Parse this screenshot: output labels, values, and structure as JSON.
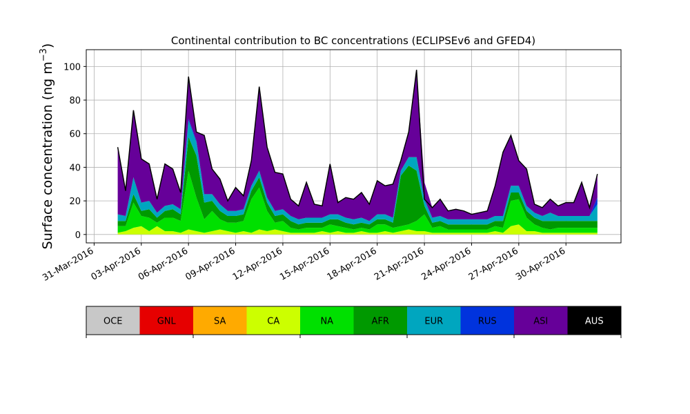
{
  "chart_data": {
    "type": "area",
    "title": "Continental contribution to BC concentrations (ECLIPSEv6 and GFED4)",
    "ylabel": "Surface concentration (ng m",
    "ylabel_sup": "−3",
    "ylabel_close": ")",
    "xlabel": "",
    "stacked": true,
    "grid": true,
    "xlim": [
      "2016-03-30T12:00",
      "2016-05-03T12:00"
    ],
    "ylim": [
      -5,
      110
    ],
    "yticks": [
      0,
      20,
      40,
      60,
      80,
      100
    ],
    "xticks": [
      "2016-03-31",
      "2016-04-03",
      "2016-04-06",
      "2016-04-09",
      "2016-04-12",
      "2016-04-15",
      "2016-04-18",
      "2016-04-21",
      "2016-04-24",
      "2016-04-27",
      "2016-04-30"
    ],
    "xtick_labels": [
      "31-Mar-2016",
      "03-Apr-2016",
      "06-Apr-2016",
      "09-Apr-2016",
      "12-Apr-2016",
      "15-Apr-2016",
      "18-Apr-2016",
      "21-Apr-2016",
      "24-Apr-2016",
      "27-Apr-2016",
      "30-Apr-2016"
    ],
    "x": [
      "2016-04-01T12:00",
      "2016-04-02T00:00",
      "2016-04-02T12:00",
      "2016-04-03T00:00",
      "2016-04-03T12:00",
      "2016-04-04T00:00",
      "2016-04-04T12:00",
      "2016-04-05T00:00",
      "2016-04-05T12:00",
      "2016-04-06T00:00",
      "2016-04-06T12:00",
      "2016-04-07T00:00",
      "2016-04-07T12:00",
      "2016-04-08T00:00",
      "2016-04-08T12:00",
      "2016-04-09T00:00",
      "2016-04-09T12:00",
      "2016-04-10T00:00",
      "2016-04-10T12:00",
      "2016-04-11T00:00",
      "2016-04-11T12:00",
      "2016-04-12T00:00",
      "2016-04-12T12:00",
      "2016-04-13T00:00",
      "2016-04-13T12:00",
      "2016-04-14T00:00",
      "2016-04-14T12:00",
      "2016-04-15T00:00",
      "2016-04-15T12:00",
      "2016-04-16T00:00",
      "2016-04-16T12:00",
      "2016-04-17T00:00",
      "2016-04-17T12:00",
      "2016-04-18T00:00",
      "2016-04-18T12:00",
      "2016-04-19T00:00",
      "2016-04-19T12:00",
      "2016-04-20T00:00",
      "2016-04-20T12:00",
      "2016-04-21T00:00",
      "2016-04-21T12:00",
      "2016-04-22T00:00",
      "2016-04-22T12:00",
      "2016-04-23T00:00",
      "2016-04-23T12:00",
      "2016-04-24T00:00",
      "2016-04-24T12:00",
      "2016-04-25T00:00",
      "2016-04-25T12:00",
      "2016-04-26T00:00",
      "2016-04-26T12:00",
      "2016-04-27T00:00",
      "2016-04-27T12:00",
      "2016-04-28T00:00",
      "2016-04-28T12:00",
      "2016-04-29T00:00",
      "2016-04-29T12:00",
      "2016-04-30T00:00",
      "2016-04-30T12:00",
      "2016-05-01T00:00",
      "2016-05-01T12:00",
      "2016-05-02T00:00"
    ],
    "series": [
      {
        "name": "OCE",
        "color": "#c8c8c8",
        "values": [
          0,
          0,
          0,
          0,
          0,
          0,
          0,
          0,
          0,
          0,
          0,
          0,
          0,
          0,
          0,
          0,
          0,
          0,
          0,
          0,
          0,
          0,
          0,
          0,
          0,
          0,
          0,
          0,
          0,
          0,
          0,
          0,
          0,
          0,
          0,
          0,
          0,
          0,
          0,
          0,
          0,
          0,
          0,
          0,
          0,
          0,
          0,
          0,
          0,
          0,
          0,
          0,
          0,
          0,
          0,
          0,
          0,
          0,
          0,
          0,
          0,
          0
        ]
      },
      {
        "name": "GNL",
        "color": "#e60000",
        "values": [
          0,
          0,
          0,
          0,
          0,
          0,
          0,
          0,
          0,
          0,
          0,
          0,
          0,
          0,
          0,
          0,
          0,
          0,
          0,
          0,
          0,
          0,
          0,
          0,
          0,
          0,
          0,
          0,
          0,
          0,
          0,
          0,
          0,
          0,
          0,
          0,
          0,
          0,
          0,
          0,
          0,
          0,
          0,
          0,
          0,
          0,
          0,
          0,
          0,
          0,
          0,
          0,
          0,
          0,
          0,
          0,
          0,
          0,
          0,
          0,
          0,
          0
        ]
      },
      {
        "name": "SA",
        "color": "#ffaa00",
        "values": [
          0,
          0,
          0,
          0,
          0,
          0,
          0,
          0,
          0,
          0,
          0,
          0,
          0,
          0,
          0,
          0,
          0,
          0,
          0,
          0,
          0,
          0,
          0,
          0,
          0,
          0,
          0,
          0,
          0,
          0,
          0,
          0,
          0,
          0,
          0,
          0,
          0,
          0,
          0,
          0,
          0,
          0,
          0,
          0,
          0,
          0,
          0,
          0,
          0,
          0,
          0,
          0,
          0,
          0,
          0,
          0,
          0,
          0,
          0,
          0,
          0,
          0
        ]
      },
      {
        "name": "CA",
        "color": "#ccff00",
        "values": [
          1,
          2,
          4,
          5,
          2,
          5,
          2,
          2,
          1,
          3,
          2,
          1,
          2,
          3,
          2,
          1,
          2,
          1,
          3,
          2,
          3,
          2,
          1,
          1,
          1,
          1,
          2,
          1,
          2,
          1,
          1,
          2,
          1,
          1,
          2,
          1,
          2,
          3,
          2,
          2,
          1,
          1,
          1,
          1,
          1,
          1,
          1,
          1,
          2,
          1,
          5,
          6,
          2,
          2,
          1,
          1,
          1,
          1,
          1,
          1,
          1,
          1
        ]
      },
      {
        "name": "NA",
        "color": "#00e000",
        "values": [
          4,
          3,
          15,
          6,
          8,
          2,
          8,
          8,
          7,
          35,
          20,
          8,
          12,
          6,
          5,
          6,
          6,
          20,
          25,
          12,
          4,
          6,
          3,
          2,
          3,
          3,
          2,
          5,
          3,
          3,
          2,
          2,
          2,
          5,
          4,
          3,
          3,
          3,
          6,
          10,
          3,
          4,
          2,
          2,
          2,
          2,
          2,
          2,
          3,
          3,
          15,
          15,
          8,
          4,
          3,
          2,
          3,
          3,
          3,
          3,
          3,
          3
        ]
      },
      {
        "name": "AFR",
        "color": "#009900",
        "values": [
          3,
          3,
          5,
          3,
          5,
          3,
          4,
          5,
          4,
          20,
          25,
          10,
          6,
          5,
          4,
          4,
          4,
          5,
          6,
          5,
          4,
          4,
          4,
          3,
          3,
          3,
          3,
          3,
          4,
          3,
          3,
          3,
          3,
          3,
          3,
          3,
          30,
          35,
          30,
          5,
          3,
          3,
          3,
          3,
          3,
          3,
          3,
          3,
          3,
          4,
          5,
          4,
          4,
          4,
          4,
          5,
          4,
          4,
          4,
          4,
          4,
          4
        ]
      },
      {
        "name": "EUR",
        "color": "#00a6bf",
        "values": [
          4,
          3,
          10,
          5,
          5,
          3,
          3,
          3,
          3,
          10,
          8,
          5,
          4,
          4,
          3,
          3,
          3,
          3,
          4,
          3,
          3,
          3,
          3,
          3,
          3,
          3,
          3,
          3,
          3,
          3,
          3,
          3,
          2,
          3,
          3,
          3,
          3,
          5,
          8,
          4,
          3,
          3,
          3,
          3,
          3,
          3,
          3,
          3,
          3,
          3,
          4,
          4,
          3,
          3,
          3,
          5,
          3,
          3,
          3,
          3,
          3,
          10
        ]
      },
      {
        "name": "RUS",
        "color": "#0033dd",
        "values": [
          0,
          0,
          0,
          0,
          0,
          0,
          0,
          0,
          0,
          1,
          1,
          0,
          0,
          0,
          0,
          0,
          0,
          0,
          0,
          0,
          0,
          0,
          0,
          0,
          0,
          0,
          0,
          0,
          0,
          0,
          0,
          0,
          0,
          0,
          0,
          0,
          0,
          0,
          0,
          0,
          0,
          0,
          0,
          0,
          0,
          0,
          0,
          0,
          0,
          0,
          0,
          0,
          0,
          0,
          0,
          0,
          0,
          0,
          0,
          0,
          0,
          4
        ]
      },
      {
        "name": "ASI",
        "color": "#660099",
        "values": [
          40,
          15,
          40,
          26,
          22,
          8,
          25,
          21,
          10,
          25,
          5,
          35,
          15,
          15,
          6,
          14,
          8,
          15,
          50,
          30,
          23,
          21,
          10,
          8,
          21,
          8,
          7,
          30,
          7,
          12,
          12,
          15,
          10,
          20,
          17,
          20,
          6,
          15,
          52,
          10,
          6,
          10,
          5,
          6,
          5,
          3,
          4,
          5,
          18,
          38,
          30,
          15,
          22,
          5,
          5,
          8,
          6,
          8,
          8,
          20,
          5,
          14
        ]
      },
      {
        "name": "AUS",
        "color": "#000000",
        "values": [
          0,
          0,
          0,
          0,
          0,
          0,
          0,
          0,
          0,
          0,
          0,
          0,
          0,
          0,
          0,
          0,
          0,
          0,
          0,
          0,
          0,
          0,
          0,
          0,
          0,
          0,
          0,
          0,
          0,
          0,
          0,
          0,
          0,
          0,
          0,
          0,
          0,
          0,
          0,
          0,
          0,
          0,
          0,
          0,
          0,
          0,
          0,
          0,
          0,
          0,
          0,
          0,
          0,
          0,
          0,
          0,
          0,
          0,
          0,
          0,
          0,
          0
        ]
      }
    ],
    "total": [
      52,
      26,
      74,
      45,
      42,
      21,
      42,
      39,
      25,
      94,
      61,
      59,
      39,
      33,
      20,
      28,
      23,
      44,
      88,
      52,
      37,
      36,
      21,
      17,
      31,
      18,
      17,
      42,
      19,
      22,
      21,
      25,
      18,
      32,
      29,
      30,
      44,
      61,
      98,
      21,
      16,
      21,
      14,
      15,
      14,
      12,
      13,
      14,
      29,
      49,
      59,
      44,
      39,
      18,
      16,
      21,
      17,
      19,
      19,
      31,
      16,
      36
    ]
  },
  "legend": {
    "items": [
      "OCE",
      "GNL",
      "SA",
      "CA",
      "NA",
      "AFR",
      "EUR",
      "RUS",
      "ASI",
      "AUS"
    ],
    "text_colors": [
      "#000000",
      "#000000",
      "#000000",
      "#000000",
      "#000000",
      "#000000",
      "#000000",
      "#000000",
      "#000000",
      "#ffffff"
    ]
  }
}
